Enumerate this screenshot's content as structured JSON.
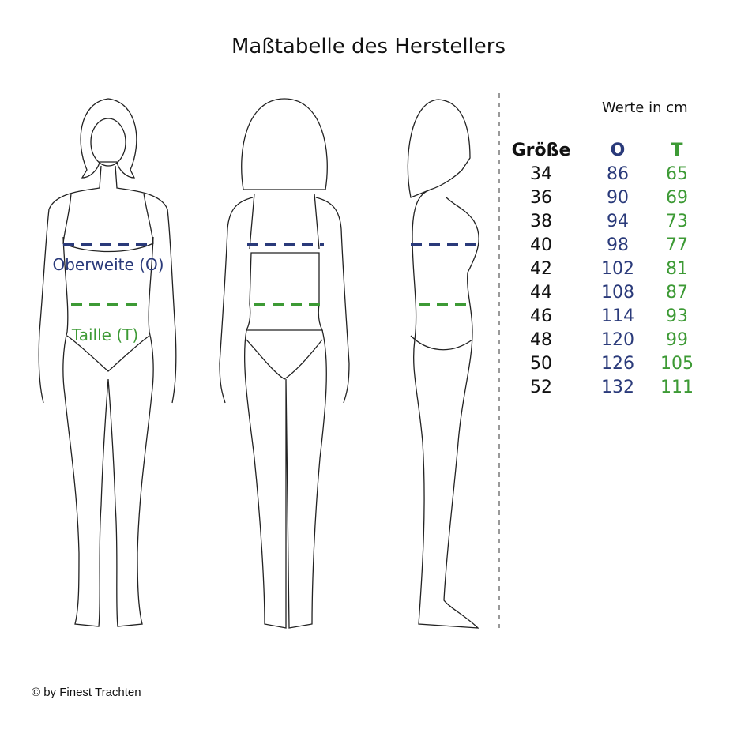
{
  "title": "Maßtabelle des Herstellers",
  "labels": {
    "bust": "Oberweite (O)",
    "waist": "Taille (T)"
  },
  "table": {
    "unit_note": "Werte in cm",
    "headers": {
      "size": "Größe",
      "bust": "O",
      "waist": "T"
    },
    "rows": [
      {
        "size": "34",
        "bust": "86",
        "waist": "65"
      },
      {
        "size": "36",
        "bust": "90",
        "waist": "69"
      },
      {
        "size": "38",
        "bust": "94",
        "waist": "73"
      },
      {
        "size": "40",
        "bust": "98",
        "waist": "77"
      },
      {
        "size": "42",
        "bust": "102",
        "waist": "81"
      },
      {
        "size": "44",
        "bust": "108",
        "waist": "87"
      },
      {
        "size": "46",
        "bust": "114",
        "waist": "93"
      },
      {
        "size": "48",
        "bust": "120",
        "waist": "99"
      },
      {
        "size": "50",
        "bust": "126",
        "waist": "105"
      },
      {
        "size": "52",
        "bust": "132",
        "waist": "111"
      }
    ]
  },
  "footer": "© by Finest Trachten",
  "colors": {
    "bust": "#2a3a7a",
    "waist": "#3d9a35",
    "divider": "#999999"
  }
}
